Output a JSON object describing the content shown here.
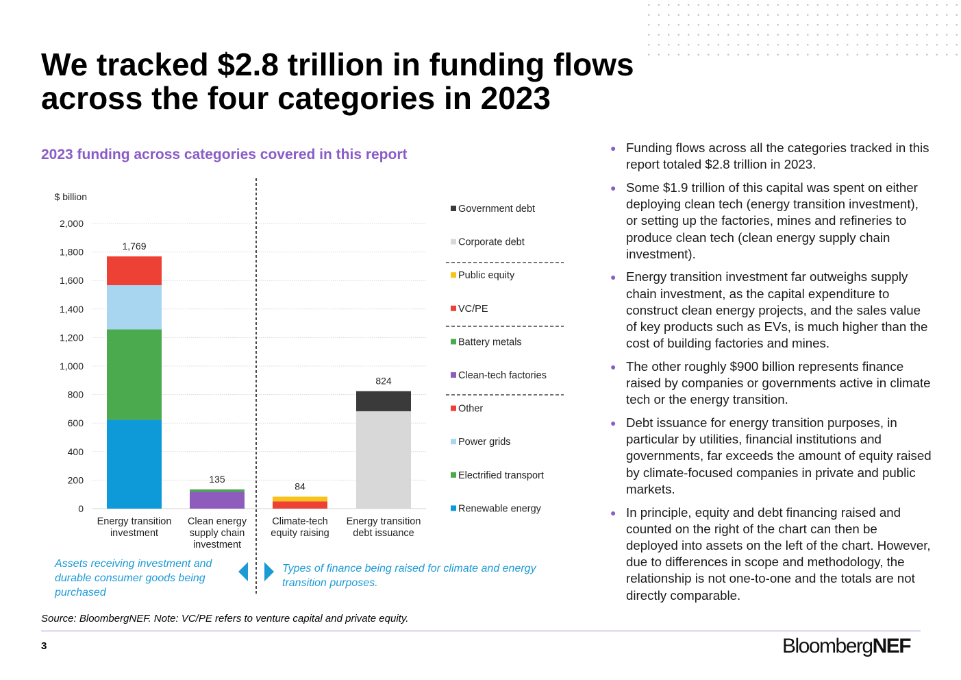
{
  "title": "We tracked $2.8 trillion in funding flows across the four categories in 2023",
  "subtitle": "2023 funding across categories covered in this report",
  "chart_data": {
    "type": "bar",
    "stacked": true,
    "ylabel": "$ billion",
    "ylim": [
      0,
      2000
    ],
    "yticks": [
      0,
      200,
      400,
      600,
      800,
      1000,
      1200,
      1400,
      1600,
      1800,
      2000
    ],
    "ytick_labels": [
      "0",
      "200",
      "400",
      "600",
      "800",
      "1,000",
      "1,200",
      "1,400",
      "1,600",
      "1,800",
      "2,000"
    ],
    "grid": true,
    "categories": [
      [
        "Energy transition",
        "investment"
      ],
      [
        "Clean energy",
        "supply chain",
        "investment"
      ],
      [
        "Climate-tech",
        "equity raising"
      ],
      [
        "Energy transition",
        "debt issuance"
      ]
    ],
    "totals": [
      "1,769",
      "135",
      "84",
      "824"
    ],
    "series": [
      {
        "name": "Renewable energy",
        "color": "#0e9ad9",
        "values": [
          623,
          0,
          0,
          0
        ]
      },
      {
        "name": "Electrified transport",
        "color": "#4caa4e",
        "values": [
          634,
          0,
          0,
          0
        ]
      },
      {
        "name": "Power grids",
        "color": "#a8d5f0",
        "values": [
          310,
          0,
          0,
          0
        ]
      },
      {
        "name": "Other",
        "color": "#ee4136",
        "values": [
          202,
          0,
          0,
          0
        ]
      },
      {
        "name": "Clean-tech factories",
        "color": "#8e5cbd",
        "values": [
          0,
          118,
          0,
          0
        ]
      },
      {
        "name": "Battery metals",
        "color": "#4caa4e",
        "values": [
          0,
          17,
          0,
          0
        ]
      },
      {
        "name": "VC/PE",
        "color": "#ee4136",
        "values": [
          0,
          0,
          51,
          0
        ]
      },
      {
        "name": "Public equity",
        "color": "#f7c31b",
        "values": [
          0,
          0,
          33,
          0
        ]
      },
      {
        "name": "Corporate debt",
        "color": "#d8d8d8",
        "values": [
          0,
          0,
          0,
          683
        ]
      },
      {
        "name": "Government debt",
        "color": "#3a3a3a",
        "values": [
          0,
          0,
          0,
          141
        ]
      }
    ],
    "legend_order": [
      "Government debt",
      "Corporate debt",
      "Public equity",
      "VC/PE",
      "Battery metals",
      "Clean-tech factories",
      "Other",
      "Power grids",
      "Electrified transport",
      "Renewable energy"
    ],
    "legend_position": "right"
  },
  "notes": {
    "left": "Assets receiving investment and durable consumer goods being purchased",
    "right": "Types of finance being raised for climate and energy transition purposes."
  },
  "source": "Source: BloombergNEF. Note: VC/PE refers to venture capital and private equity.",
  "bullets": [
    "Funding flows across all the categories tracked in this report totaled $2.8 trillion in 2023.",
    "Some $1.9 trillion of this capital was spent on either deploying clean tech (energy transition investment), or setting up the factories, mines and refineries to produce clean tech (clean energy supply chain investment).",
    "Energy transition investment far outweighs supply chain investment, as the capital expenditure to construct clean energy projects, and the sales value of key products such as EVs, is much higher than the cost of building factories and mines.",
    "The other roughly $900 billion represents finance raised by companies or governments active in climate tech or the energy transition.",
    "Debt issuance for energy transition purposes, in particular by utilities, financial institutions and governments, far exceeds the amount of equity raised by climate-focused companies in private and public markets.",
    "In principle, equity and debt financing raised and counted on the right of the chart can then be deployed into assets on the left of the chart. However, due to differences in scope and methodology, the relationship is not one-to-one and the totals are not directly comparable."
  ],
  "footer": {
    "page_number": "3",
    "logo_part1": "Bloomberg",
    "logo_part2": "NEF"
  },
  "colors": {
    "accent": "#8a5cc8",
    "note": "#1c9ad6",
    "footer_line": "#a98ad6"
  },
  "icons": {
    "left_arrow": "triangle-left-icon",
    "right_arrow": "triangle-right-icon"
  }
}
